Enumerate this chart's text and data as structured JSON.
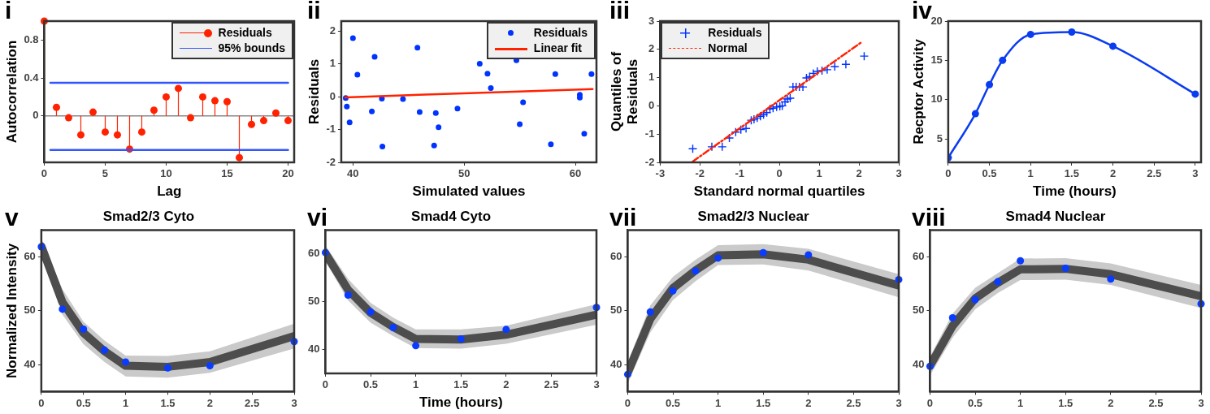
{
  "chart_data": [
    {
      "type": "lollipop",
      "annotations": [
        "i"
      ],
      "xlabel": "Lag",
      "ylabel": "Autocorrelation",
      "legend": "top right",
      "marker": "circle",
      "x": [
        0,
        1,
        2,
        3,
        4,
        5,
        6,
        7,
        8,
        9,
        10,
        11,
        12,
        13,
        14,
        15,
        16,
        17,
        18,
        19,
        20
      ],
      "xlim": [
        0,
        20.5
      ],
      "xticks": [
        0,
        5,
        10,
        15,
        20
      ],
      "ylim": [
        -0.49,
        1
      ],
      "yticks": [
        0,
        0.4,
        0.8
      ],
      "series": [
        {
          "name": "Residuals",
          "color": "#ff2200",
          "values": [
            1.0,
            0.09,
            -0.02,
            -0.2,
            0.04,
            -0.17,
            -0.2,
            -0.35,
            -0.17,
            0.06,
            0.2,
            0.29,
            -0.02,
            0.2,
            0.16,
            0.15,
            -0.44,
            -0.09,
            -0.05,
            0.03,
            -0.05
          ]
        },
        {
          "type": "line",
          "name": "95% bounds",
          "color": "#3355ff",
          "marker": "none",
          "x": [
            0.5,
            20
          ],
          "values": [
            0.35,
            0.35
          ]
        },
        {
          "type": "line",
          "color": "#3355ff",
          "marker": "none",
          "x": [
            0.5,
            20
          ],
          "values": [
            -0.36,
            -0.36
          ]
        }
      ]
    },
    {
      "type": "scatter",
      "annotations": [
        "ii"
      ],
      "xlabel": "Simulated values",
      "ylabel": "Residuals",
      "legend": "top right",
      "marker": "circle",
      "xlim": [
        38.95,
        61.9
      ],
      "xticks": [
        40,
        50,
        60
      ],
      "ylim": [
        -2,
        2.3
      ],
      "yticks": [
        -2,
        -1,
        0,
        1,
        2
      ],
      "series": [
        {
          "name": "Residuals",
          "color": "#0033ff",
          "x": [
            40.0,
            39.35,
            39.45,
            39.7,
            40.4,
            41.7,
            41.95,
            42.6,
            42.65,
            44.5,
            45.8,
            46.0,
            47.45,
            47.7,
            47.3,
            49.4,
            51.4,
            52.1,
            52.4,
            54.7,
            55.0,
            55.3,
            57.8,
            58.2,
            60.4,
            60.4,
            60.8,
            61.45
          ],
          "values": [
            1.78,
            -0.04,
            -0.3,
            -0.78,
            0.67,
            -0.45,
            1.21,
            -0.06,
            -1.52,
            -0.07,
            1.49,
            -0.47,
            -0.5,
            -0.93,
            -1.49,
            -0.36,
            1.0,
            0.7,
            0.26,
            1.11,
            -0.84,
            -0.17,
            -1.45,
            0.69,
            0.06,
            -0.03,
            -1.13,
            0.69
          ]
        },
        {
          "type": "line",
          "name": "Linear fit",
          "color": "#ff2200",
          "marker": "none",
          "x": [
            39.3,
            61.55
          ],
          "values": [
            -0.02,
            0.23
          ]
        }
      ]
    },
    {
      "type": "scatter",
      "annotations": [
        "iii"
      ],
      "xlabel": "Standard normal quartiles",
      "ylabel": "Quantiles of Residuals",
      "legend": "top left",
      "marker": "cross",
      "xlim": [
        -3,
        3
      ],
      "xticks": [
        -3,
        -2,
        -1,
        0,
        1,
        2,
        3
      ],
      "ylim": [
        -2,
        3
      ],
      "yticks": [
        -2,
        -1,
        0,
        1,
        2,
        3
      ],
      "series": [
        {
          "name": "Residuals",
          "color": "#0033ff",
          "x": [
            -2.18,
            -1.7,
            -1.44,
            -1.26,
            -1.1,
            -0.97,
            -0.84,
            -0.71,
            -0.64,
            -0.56,
            -0.48,
            -0.4,
            -0.32,
            -0.24,
            -0.16,
            -0.07,
            0.01,
            0.07,
            0.14,
            0.2,
            0.27,
            0.34,
            0.42,
            0.5,
            0.59,
            0.68,
            0.76,
            0.85,
            0.95,
            1.07,
            1.2,
            1.39,
            1.67,
            2.13
          ],
          "values": [
            -1.52,
            -1.45,
            -1.45,
            -1.14,
            -0.93,
            -0.84,
            -0.8,
            -0.51,
            -0.48,
            -0.43,
            -0.37,
            -0.31,
            -0.24,
            -0.11,
            -0.08,
            -0.04,
            -0.02,
            0.0,
            0.14,
            0.24,
            0.27,
            0.67,
            0.67,
            0.67,
            0.67,
            0.99,
            1.03,
            1.15,
            1.22,
            1.25,
            1.28,
            1.39,
            1.47,
            1.76
          ]
        },
        {
          "type": "line",
          "name": "Normal",
          "color": "#ff2200",
          "marker": "none",
          "line_style": "dashed",
          "x": [
            -2.18,
            2.07
          ],
          "values": [
            -1.97,
            2.26
          ]
        }
      ]
    },
    {
      "type": "line",
      "annotations": [
        "iv"
      ],
      "xlabel": "Time (hours)",
      "ylabel": "Recptor Activity",
      "marker": "circle",
      "x": [
        0,
        0.33,
        0.5,
        0.66,
        1,
        1.5,
        2,
        3
      ],
      "xlim": [
        0,
        3.07
      ],
      "xticks": [
        0,
        0.5,
        1,
        1.5,
        2,
        2.5,
        3
      ],
      "ylim": [
        2,
        20
      ],
      "yticks": [
        5,
        10,
        15,
        20
      ],
      "series": [
        {
          "color": "#0a3cf0",
          "values": [
            2.6,
            8.2,
            11.9,
            15.0,
            18.3,
            18.6,
            16.8,
            10.7
          ]
        }
      ]
    },
    {
      "type": "line",
      "title": "Smad2/3 Cyto",
      "annotations": [
        "v"
      ],
      "ylabel": "Normalized Intensity",
      "x": [
        0,
        0.25,
        0.5,
        0.75,
        1,
        1.5,
        2,
        3
      ],
      "xlim": [
        0,
        3
      ],
      "xticks": [
        0,
        0.5,
        1,
        1.5,
        2,
        2.5,
        3
      ],
      "ylim": [
        35,
        65
      ],
      "yticks": [
        40,
        50,
        60
      ],
      "series": [
        {
          "color": "#4d4d4d",
          "values": [
            62.0,
            51.6,
            45.9,
            42.5,
            39.8,
            39.6,
            40.5,
            45.3
          ],
          "lower": [
            60.5,
            49.3,
            43.8,
            40.5,
            37.8,
            37.6,
            38.5,
            43.0
          ],
          "upper": [
            63.5,
            54.0,
            48.0,
            44.5,
            41.7,
            41.6,
            42.5,
            47.6
          ]
        },
        {
          "type": "scatter",
          "marker": "circle",
          "color": "#0a3cff",
          "values": [
            61.9,
            50.3,
            46.6,
            42.7,
            40.5,
            39.4,
            39.8,
            44.3
          ]
        }
      ]
    },
    {
      "type": "line",
      "title": "Smad4 Cyto",
      "annotations": [
        "vi"
      ],
      "xlabel": "Time (hours)",
      "x": [
        0,
        0.25,
        0.5,
        0.75,
        1,
        1.5,
        2,
        3
      ],
      "xlim": [
        0,
        3
      ],
      "xticks": [
        0,
        0.5,
        1,
        1.5,
        2,
        2.5,
        3
      ],
      "ylim": [
        35,
        65
      ],
      "yticks": [
        40,
        50,
        60
      ],
      "series": [
        {
          "color": "#4d4d4d",
          "values": [
            60.1,
            52.5,
            47.7,
            44.7,
            42.2,
            42.1,
            43.1,
            47.3
          ],
          "lower": [
            58.5,
            50.3,
            45.6,
            42.8,
            40.3,
            40.2,
            41.2,
            45.2
          ],
          "upper": [
            61.8,
            54.8,
            49.8,
            46.7,
            44.2,
            44.2,
            45.0,
            49.5
          ]
        },
        {
          "type": "scatter",
          "marker": "circle",
          "color": "#0a3cff",
          "values": [
            60.3,
            51.4,
            47.9,
            44.6,
            40.8,
            42.2,
            44.2,
            48.8
          ]
        }
      ]
    },
    {
      "type": "line",
      "title": "Smad2/3 Nuclear",
      "annotations": [
        "vii"
      ],
      "x": [
        0,
        0.25,
        0.5,
        0.75,
        1,
        1.5,
        2,
        3
      ],
      "xlim": [
        0,
        3
      ],
      "xticks": [
        0,
        0.5,
        1,
        1.5,
        2,
        2.5,
        3
      ],
      "ylim": [
        35,
        65
      ],
      "yticks": [
        40,
        50,
        60
      ],
      "series": [
        {
          "color": "#4d4d4d",
          "values": [
            38.5,
            48.5,
            54.2,
            57.5,
            60.3,
            60.5,
            59.5,
            54.7
          ],
          "lower": [
            36.5,
            46.0,
            52.0,
            55.5,
            58.5,
            58.6,
            57.5,
            52.5
          ],
          "upper": [
            40.5,
            51.0,
            56.3,
            59.5,
            62.2,
            62.4,
            61.5,
            56.8
          ]
        },
        {
          "type": "scatter",
          "marker": "circle",
          "color": "#0a3cff",
          "values": [
            38.2,
            49.8,
            53.7,
            57.4,
            59.8,
            60.8,
            60.4,
            55.8
          ]
        }
      ]
    },
    {
      "type": "line",
      "title": "Smad4 Nuclear",
      "annotations": [
        "viii"
      ],
      "x": [
        0,
        0.25,
        0.5,
        0.75,
        1,
        1.5,
        2,
        3
      ],
      "xlim": [
        0,
        3
      ],
      "xticks": [
        0,
        0.5,
        1,
        1.5,
        2,
        2.5,
        3
      ],
      "ylim": [
        35,
        65
      ],
      "yticks": [
        40,
        50,
        60
      ],
      "series": [
        {
          "color": "#4d4d4d",
          "values": [
            39.8,
            47.2,
            52.3,
            55.2,
            57.7,
            57.8,
            56.8,
            52.7
          ],
          "lower": [
            38.0,
            45.0,
            50.3,
            53.3,
            55.7,
            55.8,
            54.8,
            50.5
          ],
          "upper": [
            41.5,
            49.5,
            54.3,
            57.0,
            59.7,
            59.8,
            58.8,
            54.8
          ]
        },
        {
          "type": "scatter",
          "marker": "circle",
          "color": "#0a3cff",
          "values": [
            39.7,
            48.7,
            52.1,
            55.4,
            59.3,
            57.9,
            55.9,
            51.3
          ]
        }
      ]
    }
  ]
}
